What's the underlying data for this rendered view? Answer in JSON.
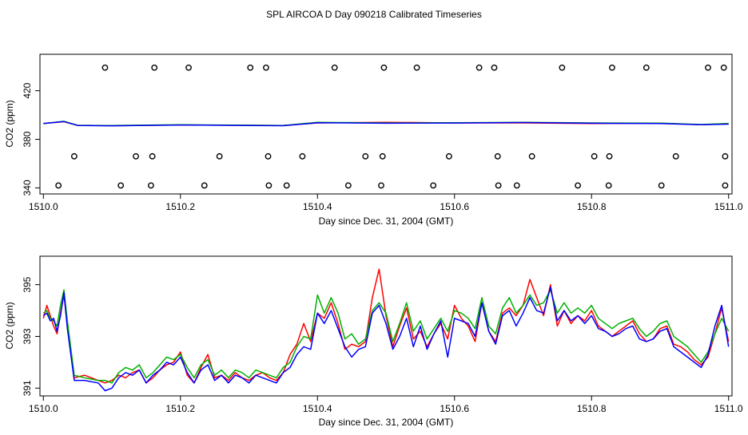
{
  "title": "SPL AIRCOA D  Day 090218  Calibrated Timeseries",
  "chart_data": [
    {
      "type": "line",
      "panel": "top",
      "xlabel": "Day since Dec. 31, 2004 (GMT)",
      "ylabel": "CO2 (ppm)",
      "xlim": [
        1509.995,
        1511.005
      ],
      "ylim": [
        335,
        450
      ],
      "xticks": [
        1510.0,
        1510.2,
        1510.4,
        1510.6,
        1510.8,
        1511.0
      ],
      "xtick_labels": [
        "1510.0",
        "1510.2",
        "1510.4",
        "1510.6",
        "1510.8",
        "1511.0"
      ],
      "yticks": [
        340,
        380,
        420
      ],
      "ytick_labels": [
        "340",
        "380",
        "420"
      ],
      "series": [
        {
          "name": "red",
          "color": "#ff0000",
          "x": [
            1510.0,
            1510.03,
            1510.05,
            1510.1,
            1510.2,
            1510.3,
            1510.35,
            1510.4,
            1510.5,
            1510.6,
            1510.7,
            1510.8,
            1510.9,
            1510.96,
            1511.0
          ],
          "values": [
            393,
            394.5,
            391.5,
            391.2,
            391.8,
            391.5,
            391.3,
            393.5,
            394,
            393.5,
            393.5,
            393,
            393.2,
            392,
            393
          ]
        },
        {
          "name": "green",
          "color": "#00b000",
          "x": [
            1510.0,
            1510.03,
            1510.05,
            1510.1,
            1510.2,
            1510.3,
            1510.35,
            1510.4,
            1510.5,
            1510.6,
            1510.7,
            1510.8,
            1510.9,
            1510.96,
            1511.0
          ],
          "values": [
            393,
            394.8,
            391.5,
            391.3,
            392,
            391.6,
            391.4,
            394,
            393.5,
            393.6,
            394,
            393.5,
            393.3,
            392.2,
            393
          ]
        },
        {
          "name": "blue",
          "color": "#0000ff",
          "x": [
            1510.0,
            1510.03,
            1510.05,
            1510.1,
            1510.2,
            1510.3,
            1510.35,
            1510.4,
            1510.5,
            1510.6,
            1510.7,
            1510.8,
            1510.9,
            1510.96,
            1511.0
          ],
          "values": [
            393,
            394.6,
            391.4,
            391.1,
            391.8,
            391.4,
            391.2,
            393.6,
            393.2,
            393.4,
            393.8,
            393.2,
            393,
            392,
            392.5
          ]
        }
      ],
      "markers": [
        {
          "level": 439,
          "x": [
            1510.09,
            1510.162,
            1510.212,
            1510.302,
            1510.325,
            1510.425,
            1510.497,
            1510.545,
            1510.636,
            1510.658,
            1510.757,
            1510.83,
            1510.88,
            1510.97,
            1510.993
          ]
        },
        {
          "level": 366,
          "x": [
            1510.045,
            1510.135,
            1510.159,
            1510.257,
            1510.328,
            1510.378,
            1510.47,
            1510.495,
            1510.592,
            1510.663,
            1510.713,
            1510.804,
            1510.826,
            1510.923,
            1510.995
          ]
        },
        {
          "level": 342,
          "x": [
            1510.022,
            1510.113,
            1510.157,
            1510.235,
            1510.329,
            1510.355,
            1510.445,
            1510.493,
            1510.569,
            1510.664,
            1510.691,
            1510.78,
            1510.825,
            1510.902,
            1510.995
          ]
        }
      ]
    },
    {
      "type": "line",
      "panel": "bottom",
      "xlabel": "Day since Dec. 31, 2004 (GMT)",
      "ylabel": "CO2 (ppm)",
      "xlim": [
        1509.995,
        1511.005
      ],
      "ylim": [
        390.7,
        396.1
      ],
      "xticks": [
        1510.0,
        1510.2,
        1510.4,
        1510.6,
        1510.8,
        1511.0
      ],
      "xtick_labels": [
        "1510.0",
        "1510.2",
        "1510.4",
        "1510.6",
        "1510.8",
        "1511.0"
      ],
      "yticks": [
        391,
        393,
        395
      ],
      "ytick_labels": [
        "391",
        "393",
        "395"
      ],
      "series": [
        {
          "name": "red",
          "color": "#ff0000",
          "x": [
            1510.0,
            1510.005,
            1510.01,
            1510.015,
            1510.02,
            1510.025,
            1510.03,
            1510.035,
            1510.045,
            1510.06,
            1510.08,
            1510.09,
            1510.1,
            1510.11,
            1510.12,
            1510.13,
            1510.14,
            1510.15,
            1510.16,
            1510.17,
            1510.18,
            1510.19,
            1510.2,
            1510.21,
            1510.22,
            1510.23,
            1510.24,
            1510.25,
            1510.26,
            1510.27,
            1510.28,
            1510.29,
            1510.3,
            1510.31,
            1510.32,
            1510.33,
            1510.34,
            1510.35,
            1510.36,
            1510.37,
            1510.38,
            1510.39,
            1510.4,
            1510.41,
            1510.42,
            1510.43,
            1510.44,
            1510.45,
            1510.46,
            1510.47,
            1510.48,
            1510.49,
            1510.5,
            1510.51,
            1510.52,
            1510.53,
            1510.54,
            1510.55,
            1510.56,
            1510.57,
            1510.58,
            1510.59,
            1510.6,
            1510.61,
            1510.62,
            1510.63,
            1510.64,
            1510.65,
            1510.66,
            1510.67,
            1510.68,
            1510.69,
            1510.7,
            1510.71,
            1510.72,
            1510.73,
            1510.74,
            1510.75,
            1510.76,
            1510.77,
            1510.78,
            1510.79,
            1510.8,
            1510.81,
            1510.82,
            1510.83,
            1510.84,
            1510.85,
            1510.86,
            1510.87,
            1510.88,
            1510.89,
            1510.9,
            1510.91,
            1510.92,
            1510.93,
            1510.94,
            1510.95,
            1510.96,
            1510.97,
            1510.98,
            1510.99,
            1511.0
          ],
          "values": [
            393.7,
            394.2,
            393.8,
            393.4,
            393.1,
            393.9,
            394.6,
            393.4,
            391.4,
            391.5,
            391.3,
            391.2,
            391.3,
            391.5,
            391.4,
            391.6,
            391.7,
            391.2,
            391.4,
            391.7,
            391.9,
            392.0,
            392.4,
            391.5,
            391.2,
            391.8,
            392.3,
            391.4,
            391.5,
            391.3,
            391.6,
            391.4,
            391.3,
            391.5,
            391.6,
            391.4,
            391.3,
            391.6,
            392.3,
            392.7,
            393.5,
            392.8,
            393.9,
            393.7,
            394.3,
            393.5,
            392.5,
            392.7,
            392.6,
            392.8,
            394.5,
            395.6,
            393.8,
            392.6,
            393.4,
            394.1,
            392.9,
            393.2,
            392.6,
            393.1,
            393.5,
            392.9,
            394.2,
            393.7,
            393.4,
            392.8,
            394.3,
            393.2,
            392.8,
            393.9,
            394.1,
            393.8,
            394.2,
            395.2,
            394.5,
            393.8,
            395.0,
            393.4,
            394.0,
            393.5,
            393.8,
            393.6,
            394.0,
            393.4,
            393.2,
            393.0,
            393.2,
            393.4,
            393.6,
            393.1,
            392.8,
            392.9,
            393.3,
            393.4,
            392.7,
            392.6,
            392.4,
            392.1,
            391.9,
            392.2,
            393.1,
            394.1,
            392.8
          ]
        },
        {
          "name": "green",
          "color": "#00b000",
          "x": [
            1510.0,
            1510.005,
            1510.01,
            1510.015,
            1510.02,
            1510.025,
            1510.03,
            1510.035,
            1510.045,
            1510.06,
            1510.08,
            1510.09,
            1510.1,
            1510.11,
            1510.12,
            1510.13,
            1510.14,
            1510.15,
            1510.16,
            1510.17,
            1510.18,
            1510.19,
            1510.2,
            1510.21,
            1510.22,
            1510.23,
            1510.24,
            1510.25,
            1510.26,
            1510.27,
            1510.28,
            1510.29,
            1510.3,
            1510.31,
            1510.32,
            1510.33,
            1510.34,
            1510.35,
            1510.36,
            1510.37,
            1510.38,
            1510.39,
            1510.4,
            1510.41,
            1510.42,
            1510.43,
            1510.44,
            1510.45,
            1510.46,
            1510.47,
            1510.48,
            1510.49,
            1510.5,
            1510.51,
            1510.52,
            1510.53,
            1510.54,
            1510.55,
            1510.56,
            1510.57,
            1510.58,
            1510.59,
            1510.6,
            1510.61,
            1510.62,
            1510.63,
            1510.64,
            1510.65,
            1510.66,
            1510.67,
            1510.68,
            1510.69,
            1510.7,
            1510.71,
            1510.72,
            1510.73,
            1510.74,
            1510.75,
            1510.76,
            1510.77,
            1510.78,
            1510.79,
            1510.8,
            1510.81,
            1510.82,
            1510.83,
            1510.84,
            1510.85,
            1510.86,
            1510.87,
            1510.88,
            1510.89,
            1510.9,
            1510.91,
            1510.92,
            1510.93,
            1510.94,
            1510.95,
            1510.96,
            1510.97,
            1510.98,
            1510.99,
            1511.0
          ],
          "values": [
            393.9,
            394.0,
            393.7,
            393.6,
            393.4,
            394.2,
            394.8,
            393.6,
            391.5,
            391.4,
            391.3,
            391.3,
            391.2,
            391.6,
            391.8,
            391.7,
            391.9,
            391.4,
            391.6,
            391.9,
            392.2,
            392.1,
            392.3,
            391.8,
            391.4,
            391.9,
            392.1,
            391.5,
            391.7,
            391.4,
            391.7,
            391.6,
            391.4,
            391.7,
            391.6,
            391.5,
            391.4,
            391.8,
            392.0,
            392.6,
            393.0,
            392.9,
            394.6,
            393.9,
            394.5,
            393.9,
            392.9,
            393.1,
            392.7,
            392.9,
            394.0,
            394.3,
            393.9,
            392.8,
            393.5,
            394.3,
            393.2,
            393.6,
            392.9,
            393.3,
            393.7,
            393.2,
            394.0,
            393.9,
            393.7,
            393.3,
            394.5,
            393.4,
            393.1,
            394.1,
            394.5,
            393.9,
            394.2,
            394.6,
            394.2,
            394.3,
            394.8,
            393.9,
            394.3,
            393.9,
            394.1,
            393.9,
            394.2,
            393.7,
            393.5,
            393.3,
            393.5,
            393.6,
            393.7,
            393.3,
            393.0,
            393.2,
            393.5,
            393.6,
            393.0,
            392.8,
            392.6,
            392.3,
            392.0,
            392.4,
            393.1,
            393.7,
            393.2
          ]
        },
        {
          "name": "blue",
          "color": "#0000ff",
          "x": [
            1510.0,
            1510.005,
            1510.01,
            1510.015,
            1510.02,
            1510.025,
            1510.03,
            1510.035,
            1510.045,
            1510.06,
            1510.08,
            1510.09,
            1510.1,
            1510.11,
            1510.12,
            1510.13,
            1510.14,
            1510.15,
            1510.16,
            1510.17,
            1510.18,
            1510.19,
            1510.2,
            1510.21,
            1510.22,
            1510.23,
            1510.24,
            1510.25,
            1510.26,
            1510.27,
            1510.28,
            1510.29,
            1510.3,
            1510.31,
            1510.32,
            1510.33,
            1510.34,
            1510.35,
            1510.36,
            1510.37,
            1510.38,
            1510.39,
            1510.4,
            1510.41,
            1510.42,
            1510.43,
            1510.44,
            1510.45,
            1510.46,
            1510.47,
            1510.48,
            1510.49,
            1510.5,
            1510.51,
            1510.52,
            1510.53,
            1510.54,
            1510.55,
            1510.56,
            1510.57,
            1510.58,
            1510.59,
            1510.6,
            1510.61,
            1510.62,
            1510.63,
            1510.64,
            1510.65,
            1510.66,
            1510.67,
            1510.68,
            1510.69,
            1510.7,
            1510.71,
            1510.72,
            1510.73,
            1510.74,
            1510.75,
            1510.76,
            1510.77,
            1510.78,
            1510.79,
            1510.8,
            1510.81,
            1510.82,
            1510.83,
            1510.84,
            1510.85,
            1510.86,
            1510.87,
            1510.88,
            1510.89,
            1510.9,
            1510.91,
            1510.92,
            1510.93,
            1510.94,
            1510.95,
            1510.96,
            1510.97,
            1510.98,
            1510.99,
            1511.0
          ],
          "values": [
            393.8,
            393.9,
            393.6,
            393.7,
            393.2,
            393.8,
            394.7,
            393.3,
            391.3,
            391.3,
            391.2,
            390.9,
            391.0,
            391.4,
            391.6,
            391.5,
            391.7,
            391.2,
            391.5,
            391.7,
            392.0,
            391.9,
            392.2,
            391.6,
            391.2,
            391.7,
            391.9,
            391.3,
            391.5,
            391.2,
            391.5,
            391.4,
            391.2,
            391.5,
            391.4,
            391.3,
            391.2,
            391.6,
            391.8,
            392.3,
            392.6,
            392.5,
            393.9,
            393.5,
            394.0,
            393.3,
            392.6,
            392.2,
            392.5,
            392.6,
            393.9,
            394.2,
            393.5,
            392.5,
            393.0,
            393.7,
            392.6,
            393.4,
            392.5,
            393.1,
            393.6,
            392.2,
            393.7,
            393.6,
            393.5,
            393.0,
            394.3,
            393.2,
            392.7,
            393.8,
            394.0,
            393.4,
            393.9,
            394.5,
            394.0,
            393.9,
            394.9,
            393.6,
            394.0,
            393.6,
            393.8,
            393.5,
            393.8,
            393.3,
            393.2,
            393.0,
            393.1,
            393.3,
            393.4,
            392.9,
            392.8,
            392.9,
            393.2,
            393.3,
            392.6,
            392.4,
            392.2,
            392.0,
            391.8,
            392.3,
            393.4,
            394.2,
            392.6
          ]
        }
      ]
    }
  ]
}
